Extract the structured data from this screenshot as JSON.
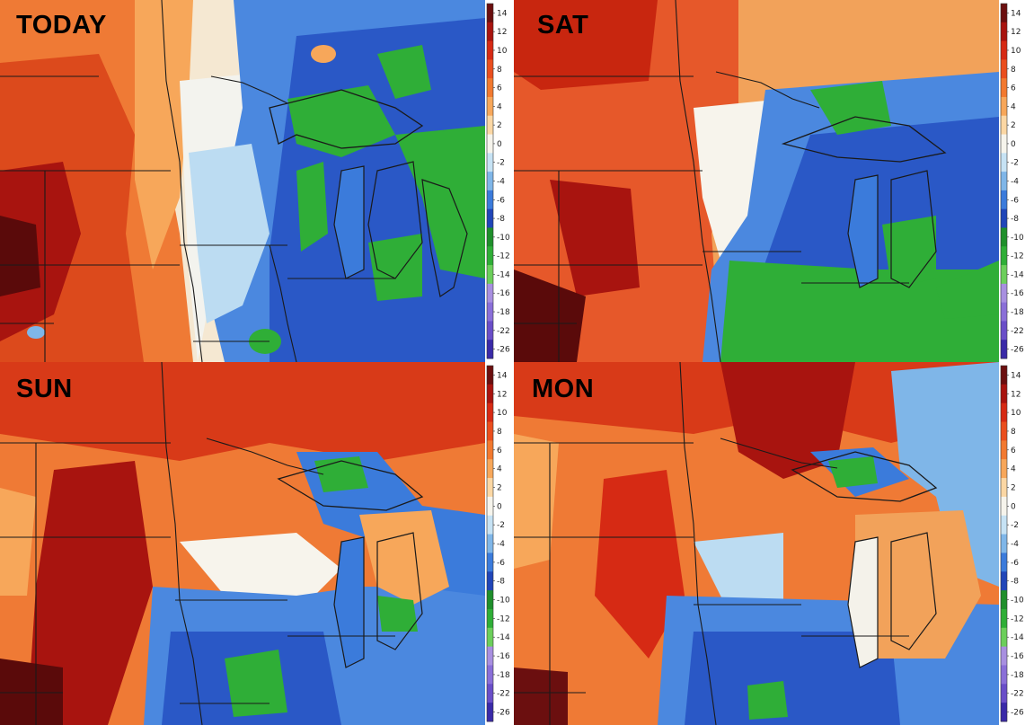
{
  "panels": [
    {
      "id": "today",
      "label": "TODAY"
    },
    {
      "id": "sat",
      "label": "SAT"
    },
    {
      "id": "sun",
      "label": "SUN"
    },
    {
      "id": "mon",
      "label": "MON"
    }
  ],
  "colorbar": {
    "ticks": [
      "14",
      "12",
      "10",
      "8",
      "6",
      "4",
      "2",
      "0",
      "-2",
      "-4",
      "-6",
      "-8",
      "-10",
      "-12",
      "-14",
      "-16",
      "-18",
      "-22",
      "-26"
    ],
    "colors": [
      "#6b0f0f",
      "#a8140f",
      "#d62a14",
      "#ea4e1e",
      "#f2792f",
      "#f7a75a",
      "#fbd7a4",
      "#f6f4ec",
      "#c6e2f4",
      "#7fb6e8",
      "#3b7bdb",
      "#2046b8",
      "#1f8f2b",
      "#2fae37",
      "#6ccf5b",
      "#a88fe0",
      "#8a6fd8",
      "#6a4ec8",
      "#3a2aa8"
    ]
  },
  "legend_colors": {
    "warm_strong": "#7a0f0f",
    "warm": "#d83a18",
    "warm_light": "#f4a35a",
    "neutral": "#f6f4ec",
    "cool_light": "#b9dcf3",
    "cool": "#3e7fde",
    "cool_strong": "#1c46b4",
    "green": "#2aa13a"
  }
}
